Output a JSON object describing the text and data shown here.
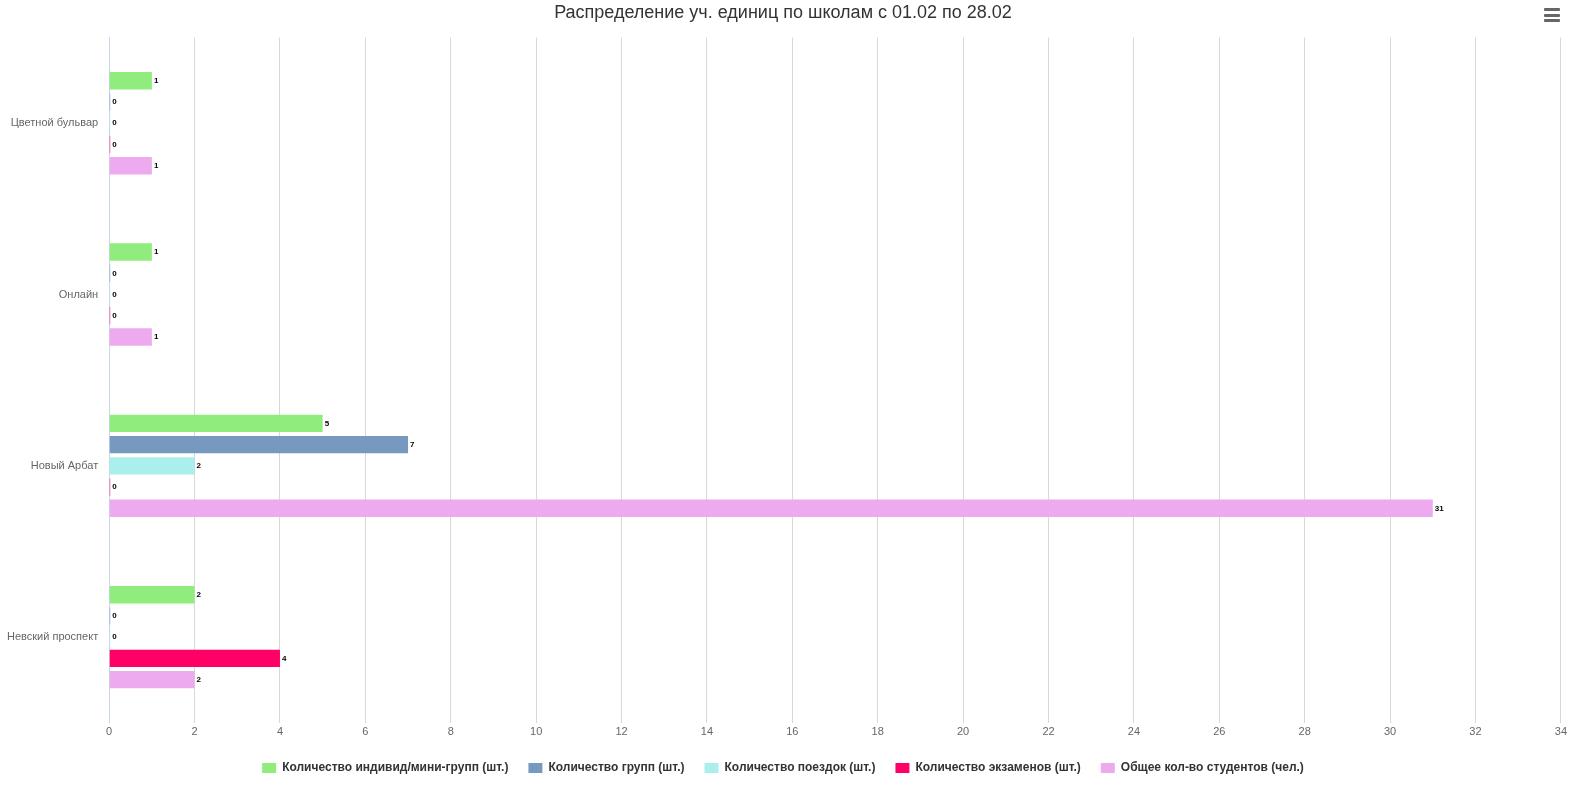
{
  "chart_data": {
    "type": "bar",
    "orientation": "horizontal",
    "title": "Распределение уч. единиц по школам с 01.02 по 28.02",
    "categories": [
      "Цветной бульвар",
      "Онлайн",
      "Новый Арбат",
      "Невский проспект"
    ],
    "series": [
      {
        "name": "Количество индивид/мини-групп (шт.)",
        "color": "#90ed7d",
        "values": [
          1,
          1,
          5,
          2
        ]
      },
      {
        "name": "Количество групп (шт.)",
        "color": "#7798bf",
        "values": [
          0,
          0,
          7,
          0
        ]
      },
      {
        "name": "Количество поездок (шт.)",
        "color": "#aaeeee",
        "values": [
          0,
          0,
          2,
          0
        ]
      },
      {
        "name": "Количество экзаменов (шт.)",
        "color": "#ff0066",
        "values": [
          0,
          0,
          0,
          4
        ]
      },
      {
        "name": "Общее кол-во студентов (чел.)",
        "color": "#eeaaee",
        "values": [
          1,
          1,
          31,
          2
        ]
      }
    ],
    "xlim": [
      0,
      34
    ],
    "xticks": [
      0,
      2,
      4,
      6,
      8,
      10,
      12,
      14,
      16,
      18,
      20,
      22,
      24,
      26,
      28,
      30,
      32,
      34
    ],
    "grid": "x",
    "legend": "bottom",
    "data_labels": true
  }
}
